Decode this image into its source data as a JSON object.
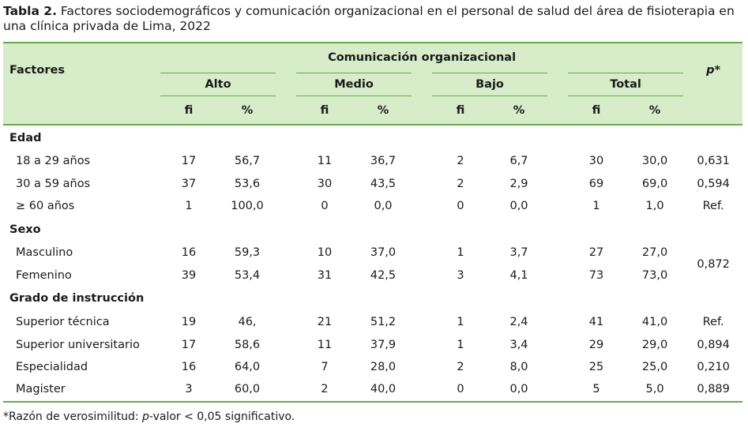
{
  "caption": {
    "label": "Tabla 2.",
    "text": " Factores sociodemográficos y comunicación organizacional en el personal de salud del área de fisioterapia en una clínica privada de Lima, 2022"
  },
  "header": {
    "factores": "Factores",
    "group_title": "Comunicación organizacional",
    "groups": [
      "Alto",
      "Medio",
      "Bajo",
      "Total"
    ],
    "sub_fi": "fi",
    "sub_pct": "%",
    "pvalue": "p*"
  },
  "sections": [
    {
      "title": "Edad",
      "rows": [
        {
          "label": "18 a 29 años",
          "alto_fi": "17",
          "alto_pct": "56,7",
          "medio_fi": "11",
          "medio_pct": "36,7",
          "bajo_fi": "2",
          "bajo_pct": "6,7",
          "total_fi": "30",
          "total_pct": "30,0",
          "p": "0,631"
        },
        {
          "label": "30 a 59 años",
          "alto_fi": "37",
          "alto_pct": "53,6",
          "medio_fi": "30",
          "medio_pct": "43,5",
          "bajo_fi": "2",
          "bajo_pct": "2,9",
          "total_fi": "69",
          "total_pct": "69,0",
          "p": "0,594"
        },
        {
          "label": "≥ 60 años",
          "alto_fi": "1",
          "alto_pct": "100,0",
          "medio_fi": "0",
          "medio_pct": "0,0",
          "bajo_fi": "0",
          "bajo_pct": "0,0",
          "total_fi": "1",
          "total_pct": "1,0",
          "p": "Ref."
        }
      ]
    },
    {
      "title": "Sexo",
      "merged_p": "0,872",
      "rows": [
        {
          "label": "Masculino",
          "alto_fi": "16",
          "alto_pct": "59,3",
          "medio_fi": "10",
          "medio_pct": "37,0",
          "bajo_fi": "1",
          "bajo_pct": "3,7",
          "total_fi": "27",
          "total_pct": "27,0"
        },
        {
          "label": "Femenino",
          "alto_fi": "39",
          "alto_pct": "53,4",
          "medio_fi": "31",
          "medio_pct": "42,5",
          "bajo_fi": "3",
          "bajo_pct": "4,1",
          "total_fi": "73",
          "total_pct": "73,0"
        }
      ]
    },
    {
      "title": "Grado de instrucción",
      "rows": [
        {
          "label": "Superior técnica",
          "alto_fi": "19",
          "alto_pct": "46,",
          "medio_fi": "21",
          "medio_pct": "51,2",
          "bajo_fi": "1",
          "bajo_pct": "2,4",
          "total_fi": "41",
          "total_pct": "41,0",
          "p": "Ref."
        },
        {
          "label": "Superior universitario",
          "alto_fi": "17",
          "alto_pct": "58,6",
          "medio_fi": "11",
          "medio_pct": "37,9",
          "bajo_fi": "1",
          "bajo_pct": "3,4",
          "total_fi": "29",
          "total_pct": "29,0",
          "p": "0,894"
        },
        {
          "label": "Especialidad",
          "alto_fi": "16",
          "alto_pct": "64,0",
          "medio_fi": "7",
          "medio_pct": "28,0",
          "bajo_fi": "2",
          "bajo_pct": "8,0",
          "total_fi": "25",
          "total_pct": "25,0",
          "p": "0,210"
        },
        {
          "label": "Magister",
          "alto_fi": "3",
          "alto_pct": "60,0",
          "medio_fi": "2",
          "medio_pct": "40,0",
          "bajo_fi": "0",
          "bajo_pct": "0,0",
          "total_fi": "5",
          "total_pct": "5,0",
          "p": "0,889"
        }
      ]
    }
  ],
  "footnote": {
    "prefix": "*Razón de verosimilitud: ",
    "italic": "p",
    "suffix": "-valor < 0,05 significativo."
  },
  "colors": {
    "header_bg": "#d7ecc9",
    "rule": "#6aa84f"
  }
}
